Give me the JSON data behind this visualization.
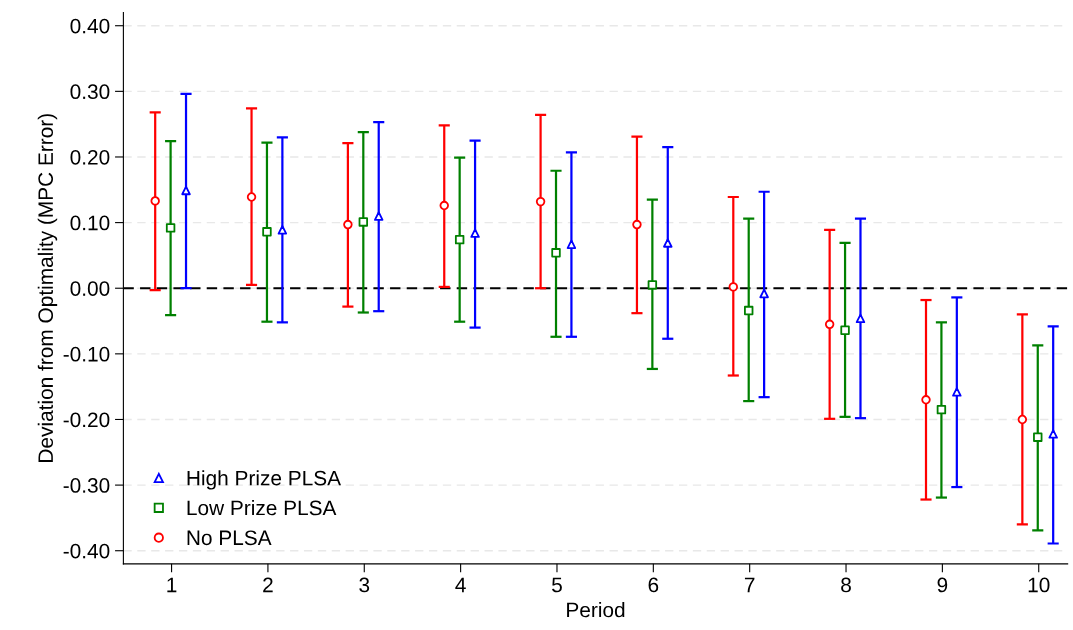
{
  "chart_data": {
    "type": "scatter",
    "xlabel": "Period",
    "ylabel": "Deviation from Optimality (MPC Error)",
    "xlim": [
      0.5,
      10.3
    ],
    "xticks": [
      1,
      2,
      3,
      4,
      5,
      6,
      7,
      8,
      9,
      10
    ],
    "ylim": [
      -0.42,
      0.42
    ],
    "yticks": [
      {
        "value": -0.4,
        "label": "-0.40"
      },
      {
        "value": -0.3,
        "label": "-0.30"
      },
      {
        "value": -0.2,
        "label": "-0.20"
      },
      {
        "value": -0.1,
        "label": "-0.10"
      },
      {
        "value": 0,
        "label": "0.00"
      },
      {
        "value": 0.1,
        "label": "0.10"
      },
      {
        "value": 0.2,
        "label": "0.20"
      },
      {
        "value": 0.3,
        "label": "0.30"
      },
      {
        "value": 0.4,
        "label": "0.40"
      }
    ],
    "grid": "y",
    "legend": "bottom left",
    "ref_lines": [
      {
        "axis": "y",
        "value": 0,
        "color": "#000000",
        "line_style": "dashed"
      }
    ],
    "series": [
      {
        "name": "High Prize PLSA",
        "color": "#0000ff",
        "marker": "triangle",
        "x": [
          1.15,
          2.15,
          3.15,
          4.15,
          5.15,
          6.15,
          7.15,
          8.15,
          9.15,
          10.15
        ],
        "values": [
          0.149,
          0.089,
          0.11,
          0.084,
          0.067,
          0.069,
          -0.008,
          -0.046,
          -0.158,
          -0.222
        ],
        "errors": [
          [
            0.0,
            0.296
          ],
          [
            -0.052,
            0.23
          ],
          [
            -0.035,
            0.253
          ],
          [
            -0.06,
            0.225
          ],
          [
            -0.074,
            0.207
          ],
          [
            -0.077,
            0.215
          ],
          [
            -0.166,
            0.147
          ],
          [
            -0.198,
            0.106
          ],
          [
            -0.303,
            -0.014
          ],
          [
            -0.389,
            -0.058
          ]
        ]
      },
      {
        "name": "Low Prize PLSA",
        "color": "#008000",
        "marker": "square",
        "x": [
          0.99,
          1.99,
          2.99,
          3.99,
          4.99,
          5.99,
          6.99,
          7.99,
          8.99,
          9.99
        ],
        "values": [
          0.092,
          0.086,
          0.101,
          0.074,
          0.054,
          0.005,
          -0.034,
          -0.064,
          -0.185,
          -0.227
        ],
        "errors": [
          [
            -0.041,
            0.224
          ],
          [
            -0.051,
            0.222
          ],
          [
            -0.037,
            0.238
          ],
          [
            -0.051,
            0.199
          ],
          [
            -0.074,
            0.179
          ],
          [
            -0.123,
            0.135
          ],
          [
            -0.172,
            0.106
          ],
          [
            -0.196,
            0.069
          ],
          [
            -0.319,
            -0.052
          ],
          [
            -0.369,
            -0.087
          ]
        ]
      },
      {
        "name": "No PLSA",
        "color": "#ff0000",
        "marker": "circle",
        "x": [
          0.83,
          1.83,
          2.83,
          3.83,
          4.83,
          5.83,
          6.83,
          7.83,
          8.83,
          9.83
        ],
        "values": [
          0.133,
          0.139,
          0.097,
          0.126,
          0.132,
          0.097,
          0.002,
          -0.055,
          -0.17,
          -0.2
        ],
        "errors": [
          [
            -0.003,
            0.268
          ],
          [
            0.005,
            0.274
          ],
          [
            -0.028,
            0.221
          ],
          [
            0.002,
            0.248
          ],
          [
            0.0,
            0.264
          ],
          [
            -0.038,
            0.231
          ],
          [
            -0.133,
            0.139
          ],
          [
            -0.199,
            0.089
          ],
          [
            -0.322,
            -0.018
          ],
          [
            -0.36,
            -0.04
          ]
        ]
      }
    ]
  }
}
